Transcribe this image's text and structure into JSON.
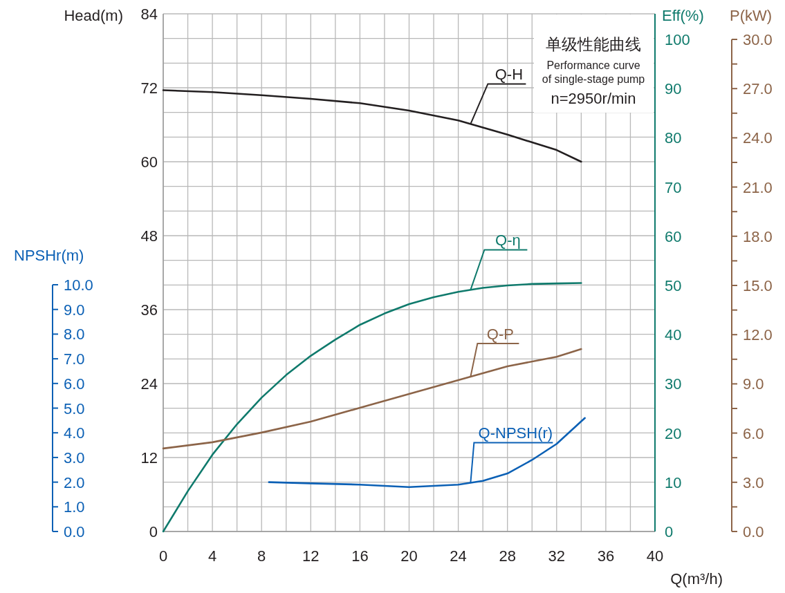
{
  "chart_data": [
    {
      "type": "line",
      "xlabel": "Q(m³/h)",
      "ylabel": "Head(m)",
      "y2label": "Eff(%)",
      "y3label": "P(kW)",
      "xlim": [
        0,
        40
      ],
      "xticks": [
        0,
        {
          "value": 2,
          "label": null
        },
        4,
        {
          "value": 6,
          "label": null
        },
        8,
        {
          "value": 10,
          "label": null
        },
        12,
        {
          "value": 14,
          "label": null
        },
        16,
        {
          "value": 18,
          "label": null
        },
        20,
        {
          "value": 22,
          "label": null
        },
        24,
        {
          "value": 26,
          "label": null
        },
        28,
        {
          "value": 30,
          "label": null
        },
        32,
        {
          "value": 34,
          "label": null
        },
        36,
        {
          "value": 38,
          "label": null
        },
        40
      ],
      "ylim": [
        0,
        84
      ],
      "yticks": [
        0,
        {
          "value": 4,
          "label": null
        },
        {
          "value": 8,
          "label": null
        },
        12,
        {
          "value": 16,
          "label": null
        },
        {
          "value": 20,
          "label": null
        },
        24,
        {
          "value": 28,
          "label": null
        },
        {
          "value": 32,
          "label": null
        },
        36,
        {
          "value": 40,
          "label": null
        },
        {
          "value": 44,
          "label": null
        },
        48,
        {
          "value": 52,
          "label": null
        },
        {
          "value": 56,
          "label": null
        },
        60,
        {
          "value": 64,
          "label": null
        },
        {
          "value": 68,
          "label": null
        },
        72,
        {
          "value": 76,
          "label": null
        },
        {
          "value": 80,
          "label": null
        },
        84
      ],
      "y2lim": [
        0,
        105.2
      ],
      "y2ticks": [
        0,
        10,
        20,
        30,
        40,
        50,
        60,
        70,
        80,
        90,
        100
      ],
      "y3lim": [
        0,
        30
      ],
      "y3ticks": [
        {
          "value": 0,
          "label": "0.0"
        },
        {
          "value": 1.5,
          "label": null
        },
        {
          "value": 3,
          "label": "3.0"
        },
        {
          "value": 4.5,
          "label": null
        },
        {
          "value": 6,
          "label": "6.0"
        },
        {
          "value": 7.5,
          "label": null
        },
        {
          "value": 9,
          "label": "9.0"
        },
        {
          "value": 10.5,
          "label": null
        },
        {
          "value": 12,
          "label": "12.0"
        },
        {
          "value": 13.5,
          "label": null
        },
        {
          "value": 15,
          "label": "15.0"
        },
        {
          "value": 16.5,
          "label": null
        },
        {
          "value": 18,
          "label": "18.0"
        },
        {
          "value": 19.5,
          "label": null
        },
        {
          "value": 21,
          "label": "21.0"
        },
        {
          "value": 22.5,
          "label": null
        },
        {
          "value": 24,
          "label": "24.0"
        },
        {
          "value": 25.5,
          "label": null
        },
        {
          "value": 27,
          "label": "27.0"
        },
        {
          "value": 28.5,
          "label": null
        },
        {
          "value": 30,
          "label": "30.0"
        }
      ],
      "grid": true,
      "line_style": "solid",
      "series": [
        {
          "name": "Q-H",
          "color": "#231f20",
          "x": [
            0,
            4,
            8,
            12,
            16,
            20,
            24,
            28,
            32,
            34
          ],
          "values": [
            71.6,
            71.3,
            70.8,
            70.2,
            69.5,
            68.3,
            66.7,
            64.4,
            61.9,
            60.0
          ]
        },
        {
          "name": "Q-η",
          "color": "#0f7a6c",
          "axis": "y2",
          "x": [
            0,
            2,
            4,
            6,
            8,
            10,
            12,
            14,
            16,
            18,
            20,
            22,
            24,
            26,
            28,
            30,
            32,
            34
          ],
          "values": [
            0,
            8.2,
            15.6,
            21.8,
            27.2,
            31.8,
            35.7,
            39,
            42,
            44.3,
            46.2,
            47.6,
            48.7,
            49.5,
            50.0,
            50.3,
            50.4,
            50.5
          ]
        },
        {
          "name": "Q-P",
          "color": "#8c6448",
          "axis": "y3",
          "x": [
            0,
            4,
            8,
            12,
            16,
            20,
            24,
            28,
            32,
            34
          ],
          "values": [
            5.06,
            5.44,
            6.03,
            6.7,
            7.54,
            8.39,
            9.23,
            10.07,
            10.65,
            11.12
          ]
        }
      ],
      "annotations": [
        "单级性能曲线",
        "Performance curve",
        "of single-stage pump",
        "n=2950r/min"
      ]
    },
    {
      "type": "line",
      "ylabel": "NPSHr(m)",
      "xlim": [
        0,
        40
      ],
      "ylim": [
        0,
        10
      ],
      "tick_labels": "y",
      "yticks": [
        {
          "value": 0,
          "label": "0.0"
        },
        {
          "value": 1,
          "label": "1.0"
        },
        {
          "value": 2,
          "label": "2.0"
        },
        {
          "value": 3,
          "label": "3.0"
        },
        {
          "value": 4,
          "label": "4.0"
        },
        {
          "value": 5,
          "label": "5.0"
        },
        {
          "value": 6,
          "label": "6.0"
        },
        {
          "value": 7,
          "label": "7.0"
        },
        {
          "value": 8,
          "label": "8.0"
        },
        {
          "value": 9,
          "label": "9.0"
        },
        {
          "value": 10,
          "label": "10.0"
        }
      ],
      "series": [
        {
          "name": "Q-NPSH(r)",
          "color": "#0b60b5",
          "x": [
            8.6,
            12,
            16,
            20,
            22,
            24,
            26,
            28,
            30,
            32,
            34.3
          ],
          "values": [
            2.0,
            1.95,
            1.9,
            1.8,
            1.85,
            1.9,
            2.05,
            2.35,
            2.9,
            3.55,
            4.6
          ]
        }
      ]
    }
  ]
}
